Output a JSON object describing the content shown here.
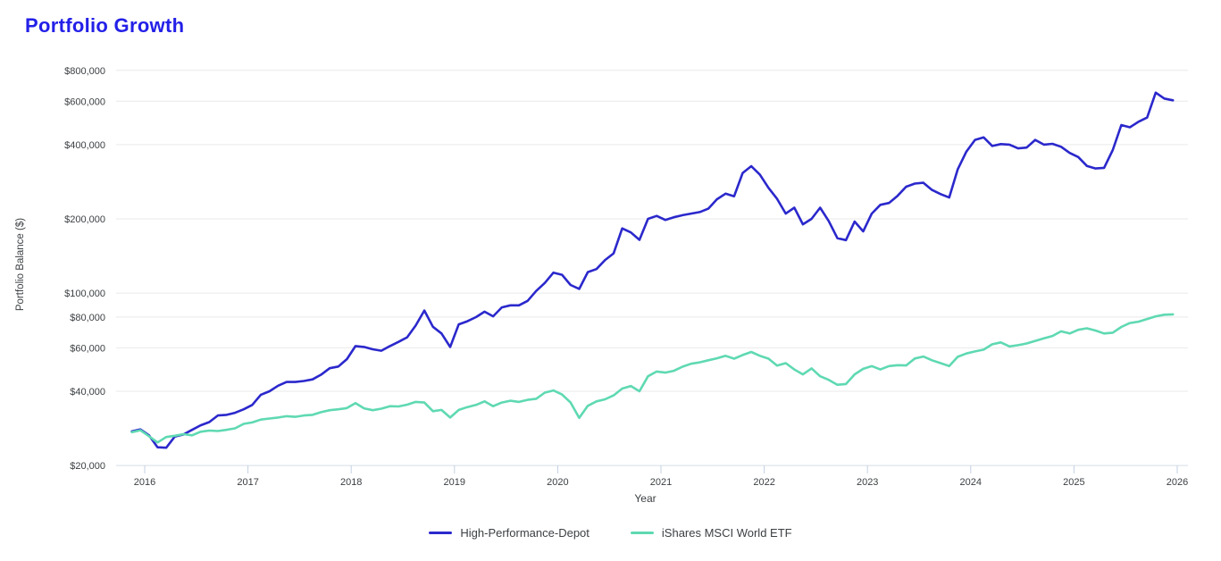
{
  "title": "Portfolio Growth",
  "colors": {
    "title": "#2320e8",
    "series_blue": "#2b28cc",
    "series_teal": "#5fd9b2",
    "gridline": "#e9e9e9",
    "axis_line": "#d3dde8",
    "tick_mark": "#c3d1e3",
    "tick_text": "#3c4043",
    "legend_text": "#3c4043"
  },
  "chart_data": {
    "type": "line",
    "title": "Portfolio Growth",
    "xlabel": "Year",
    "ylabel": "Portfolio Balance ($)",
    "y_scale": "log",
    "grid": "horizontal-only",
    "legend_position": "bottom-center",
    "x_tick_labels": [
      "2016",
      "2017",
      "2018",
      "2019",
      "2020",
      "2021",
      "2022",
      "2023",
      "2024",
      "2025",
      "2026"
    ],
    "x_tick_years": [
      2016,
      2017,
      2018,
      2019,
      2020,
      2021,
      2022,
      2023,
      2024,
      2025,
      2026
    ],
    "y_tick_labels": [
      "$20,000",
      "$40,000",
      "$60,000",
      "$80,000",
      "$100,000",
      "$200,000",
      "$400,000",
      "$600,000",
      "$800,000"
    ],
    "y_tick_values": [
      20000,
      40000,
      60000,
      80000,
      100000,
      200000,
      400000,
      600000,
      800000
    ],
    "y_range": [
      20000,
      900000
    ],
    "x_frequency": "monthly",
    "x_start_month": "2015-11",
    "x_end_month": "2025-12",
    "series": [
      {
        "name": "High-Performance-Depot",
        "color": "#2b28cc",
        "values": [
          27500,
          28000,
          26500,
          23700,
          23600,
          26200,
          26700,
          27900,
          29100,
          30000,
          31900,
          32100,
          32700,
          33800,
          35200,
          38700,
          40000,
          42100,
          43600,
          43600,
          44000,
          44700,
          46700,
          49600,
          50400,
          54000,
          61000,
          60500,
          59200,
          58400,
          61000,
          63400,
          66200,
          73900,
          85000,
          73000,
          68600,
          60500,
          74700,
          76900,
          79900,
          84100,
          80500,
          87500,
          89200,
          89200,
          93000,
          102000,
          110000,
          121000,
          118600,
          107900,
          104000,
          121600,
          125100,
          136100,
          144900,
          182900,
          176200,
          164400,
          200000,
          205600,
          198000,
          203000,
          207000,
          210000,
          213000,
          220000,
          240000,
          253000,
          247000,
          307000,
          327000,
          302000,
          267000,
          241000,
          210000,
          222000,
          190000,
          200000,
          222000,
          196000,
          167000,
          164000,
          195000,
          178000,
          210000,
          228000,
          232000,
          248000,
          270000,
          278000,
          280000,
          262000,
          252000,
          244000,
          318000,
          375000,
          418000,
          428000,
          395000,
          402000,
          400000,
          386000,
          389000,
          418000,
          400000,
          403000,
          392000,
          370000,
          356000,
          328000,
          320000,
          322000,
          380000,
          480000,
          470000,
          495000,
          515000,
          650000,
          615000,
          605000
        ]
      },
      {
        "name": "iShares MSCI World ETF",
        "color": "#5fd9b2",
        "values": [
          27300,
          27800,
          26300,
          24800,
          26100,
          26400,
          26800,
          26500,
          27400,
          27700,
          27600,
          27900,
          28300,
          29500,
          29900,
          30700,
          31000,
          31300,
          31700,
          31500,
          31900,
          32100,
          32900,
          33500,
          33800,
          34200,
          35800,
          34100,
          33500,
          34000,
          34800,
          34700,
          35300,
          36200,
          36000,
          33200,
          33600,
          31300,
          33600,
          34500,
          35200,
          36400,
          34800,
          36000,
          36600,
          36200,
          36900,
          37300,
          39500,
          40300,
          38800,
          36000,
          31200,
          34900,
          36400,
          37100,
          38500,
          41000,
          42000,
          40000,
          46000,
          48100,
          47600,
          48400,
          50300,
          51700,
          52400,
          53400,
          54400,
          55700,
          54200,
          56100,
          57700,
          55700,
          54200,
          50800,
          52000,
          49000,
          46800,
          49500,
          46000,
          44500,
          42500,
          42800,
          46800,
          49300,
          50600,
          49000,
          50600,
          51000,
          50900,
          54300,
          55300,
          53400,
          52000,
          50600,
          55200,
          56900,
          58000,
          59000,
          62000,
          63100,
          60800,
          61500,
          62500,
          64000,
          65500,
          67000,
          70000,
          68600,
          71000,
          72000,
          70500,
          68600,
          69100,
          72900,
          75600,
          76600,
          78500,
          80500,
          81700,
          82000
        ]
      }
    ]
  }
}
